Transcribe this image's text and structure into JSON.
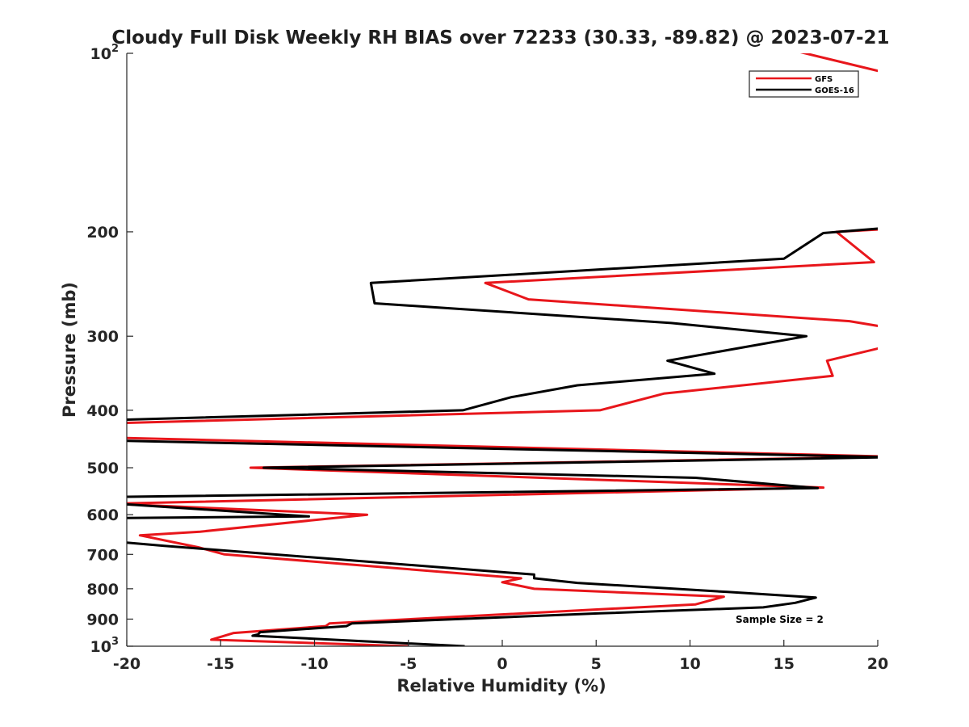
{
  "chart_data": {
    "type": "line",
    "title": "Cloudy Full Disk Weekly RH BIAS over 72233 (30.33, -89.82) @ 2023-07-21",
    "xlabel": "Relative Humidity (%)",
    "ylabel": "Pressure (mb)",
    "xlim": [
      -20,
      20
    ],
    "ylim": [
      1000,
      100
    ],
    "yscale": "log",
    "y_reversed": true,
    "grid": false,
    "legend_position": "top-right",
    "xticks": [
      "-20",
      "-15",
      "-10",
      "-5",
      "0",
      "5",
      "10",
      "15",
      "20"
    ],
    "yticks": [
      {
        "value": 100,
        "base": "10",
        "exp": "2"
      },
      {
        "value": 200,
        "label": "200"
      },
      {
        "value": 300,
        "label": "300"
      },
      {
        "value": 400,
        "label": "400"
      },
      {
        "value": 500,
        "label": "500"
      },
      {
        "value": 600,
        "label": "600"
      },
      {
        "value": 700,
        "label": "700"
      },
      {
        "value": 800,
        "label": "800"
      },
      {
        "value": 900,
        "label": "900"
      },
      {
        "value": 1000,
        "base": "10",
        "exp": "3"
      }
    ],
    "annotation": "Sample Size = 2",
    "series": [
      {
        "name": "GFS",
        "color": "#e8161b",
        "points": [
          [
            -5.0,
            1000
          ],
          [
            -15.5,
            975
          ],
          [
            -14.3,
            950
          ],
          [
            -9.4,
            925
          ],
          [
            -9.2,
            915
          ],
          [
            10.3,
            850
          ],
          [
            11.8,
            825
          ],
          [
            1.7,
            800
          ],
          [
            0.0,
            780
          ],
          [
            1.0,
            768
          ],
          [
            -14.8,
            700
          ],
          [
            -16.2,
            681
          ],
          [
            -19.3,
            650
          ],
          [
            -16.1,
            641
          ],
          [
            -7.2,
            600
          ],
          [
            -20.8,
            575
          ],
          [
            17.1,
            540
          ],
          [
            -13.4,
            500
          ],
          [
            21.0,
            479
          ],
          [
            -20.6,
            445
          ],
          [
            -20.1,
            420
          ],
          [
            5.2,
            400
          ],
          [
            8.6,
            375
          ],
          [
            17.6,
            350
          ],
          [
            17.3,
            330
          ],
          [
            20.5,
            312
          ],
          [
            20.5,
            290
          ],
          [
            18.5,
            283
          ],
          [
            1.4,
            260
          ],
          [
            -0.9,
            244
          ],
          [
            19.8,
            225
          ],
          [
            17.8,
            200
          ],
          [
            20.3,
            198
          ]
        ],
        "segment_top": [
          [
            15.0,
            98
          ],
          [
            20.5,
            108
          ]
        ]
      },
      {
        "name": "GOES-16",
        "color": "#000000",
        "points": [
          [
            -2.0,
            1000
          ],
          [
            -13.3,
            960
          ],
          [
            -13.0,
            955
          ],
          [
            -12.9,
            947
          ],
          [
            -8.3,
            925
          ],
          [
            -8.0,
            915
          ],
          [
            5.2,
            880
          ],
          [
            13.9,
            860
          ],
          [
            15.6,
            845
          ],
          [
            16.7,
            828
          ],
          [
            12.0,
            810
          ],
          [
            4.0,
            782
          ],
          [
            1.7,
            768
          ],
          [
            1.7,
            757
          ],
          [
            -18.0,
            677
          ],
          [
            -20.2,
            668
          ],
          [
            -20.1,
            650
          ],
          [
            -20.5,
            640
          ],
          [
            -20.6,
            608
          ],
          [
            -10.3,
            604
          ],
          [
            -20.5,
            575
          ],
          [
            -20.6,
            560
          ],
          [
            16.8,
            541
          ],
          [
            10.3,
            520
          ],
          [
            -12.7,
            500
          ],
          [
            20.8,
            480
          ],
          [
            -20.5,
            450
          ],
          [
            -20.3,
            442
          ],
          [
            -20.2,
            415
          ],
          [
            -2.1,
            400
          ],
          [
            0.5,
            380
          ],
          [
            4.0,
            363
          ],
          [
            11.3,
            347
          ],
          [
            8.8,
            330
          ],
          [
            16.2,
            300
          ],
          [
            9.0,
            285
          ],
          [
            -6.8,
            264
          ],
          [
            -7.0,
            244
          ],
          [
            15.0,
            222
          ],
          [
            17.1,
            201
          ],
          [
            20.5,
            197
          ]
        ]
      }
    ]
  }
}
